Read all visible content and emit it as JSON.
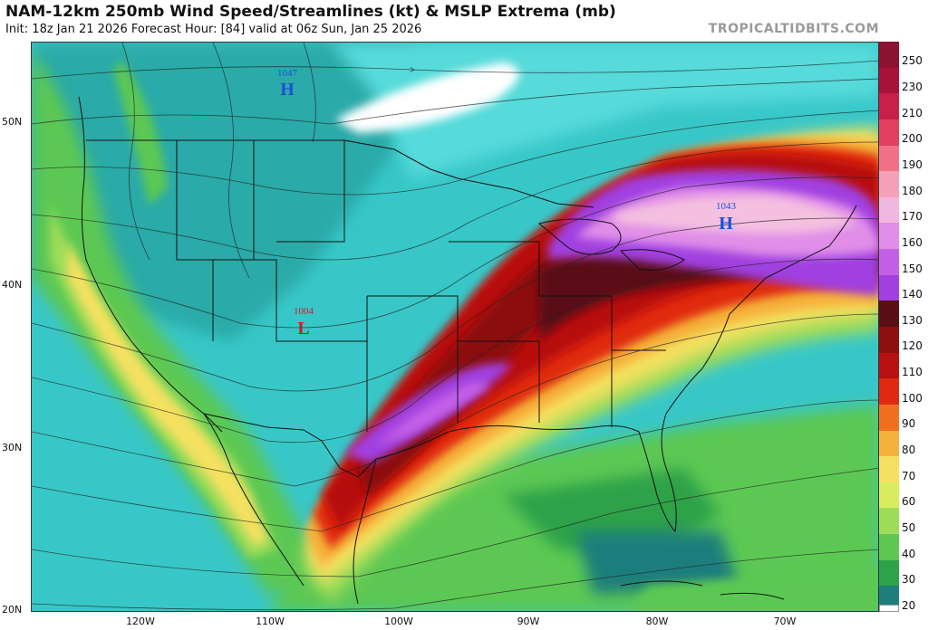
{
  "header": {
    "title": "NAM-12km 250mb Wind Speed/Streamlines (kt) & MSLP Extrema (mb)",
    "subtitle": "Init: 18z Jan 21 2026   Forecast Hour: [84]   valid at 06z Sun, Jan 25 2026",
    "credit": "TROPICALTIDBITS.COM"
  },
  "latitude_labels": [
    "50N",
    "40N",
    "30N",
    "20N"
  ],
  "longitude_labels": [
    "120W",
    "110W",
    "100W",
    "90W",
    "80W",
    "70W"
  ],
  "pressure_centers": [
    {
      "type": "H",
      "value": "1047",
      "color": "#1c4fd6"
    },
    {
      "type": "H",
      "value": "1043",
      "color": "#1c4fd6"
    },
    {
      "type": "L",
      "value": "1004",
      "color": "#d11a1a"
    }
  ],
  "colorbar": {
    "labels": [
      "250",
      "230",
      "210",
      "200",
      "190",
      "180",
      "170",
      "160",
      "150",
      "140",
      "130",
      "120",
      "110",
      "100",
      "90",
      "80",
      "70",
      "60",
      "50",
      "40",
      "30",
      "20"
    ],
    "colors": [
      "#8b1230",
      "#a8123a",
      "#c8204a",
      "#e0405e",
      "#f07088",
      "#f5a0b8",
      "#f0b8e0",
      "#e08ee8",
      "#c460e8",
      "#a040e0",
      "#5a0f14",
      "#8b1010",
      "#b81010",
      "#e02a10",
      "#f07020",
      "#f5b23a",
      "#f5e060",
      "#d8ec60",
      "#9edc58",
      "#5cc852",
      "#2ea248",
      "#1f7e7c"
    ]
  }
}
